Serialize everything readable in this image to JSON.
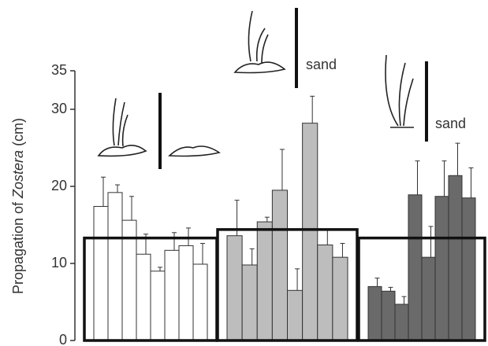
{
  "chart_data": {
    "type": "bar",
    "y_label": {
      "before": "Propagation of ",
      "italic": "Zostera",
      "after": " (cm)"
    },
    "ylim": [
      0,
      35
    ],
    "yticks": [
      0,
      10,
      20,
      30,
      35
    ],
    "annotations": [
      "sand",
      "sand"
    ],
    "series": [
      {
        "color": "#ffffff",
        "mean": 13.3,
        "values": [
          17.4,
          19.2,
          15.6,
          11.2,
          9.0,
          11.7,
          12.3,
          9.9
        ],
        "errors": [
          3.8,
          1.0,
          3.1,
          2.6,
          0.5,
          2.3,
          2.3,
          2.7
        ]
      },
      {
        "color": "#bdbdbd",
        "mean": 14.4,
        "values": [
          13.6,
          9.8,
          15.4,
          19.5,
          6.5,
          28.2,
          12.4,
          10.8
        ],
        "errors": [
          4.6,
          2.1,
          0.6,
          5.3,
          2.8,
          3.5,
          1.9,
          1.8
        ]
      },
      {
        "color": "#6a6a6a",
        "mean": 13.3,
        "values": [
          7.0,
          6.4,
          4.7,
          18.9,
          10.8,
          18.7,
          21.4,
          18.5
        ],
        "errors": [
          1.1,
          0.5,
          1.0,
          4.4,
          4.0,
          4.6,
          4.2,
          3.9
        ]
      }
    ]
  }
}
